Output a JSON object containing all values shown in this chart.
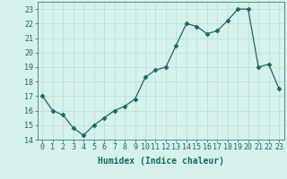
{
  "xlabel": "Humidex (Indice chaleur)",
  "x": [
    0,
    1,
    2,
    3,
    4,
    5,
    6,
    7,
    8,
    9,
    10,
    11,
    12,
    13,
    14,
    15,
    16,
    17,
    18,
    19,
    20,
    21,
    22,
    23
  ],
  "y": [
    17.0,
    16.0,
    15.7,
    14.8,
    14.3,
    15.0,
    15.5,
    16.0,
    16.3,
    16.8,
    18.3,
    18.8,
    19.0,
    20.5,
    22.0,
    21.8,
    21.3,
    21.5,
    22.2,
    23.0,
    23.0,
    19.0,
    19.2,
    17.5
  ],
  "line_color": "#1a6b5a",
  "marker": "D",
  "marker_size": 2.5,
  "bg_color": "#d6f0ee",
  "grid_color": "#b8dbd8",
  "tick_color": "#1a6b5a",
  "label_color": "#1a6b5a",
  "ylim": [
    14,
    23.5
  ],
  "yticks": [
    14,
    15,
    16,
    17,
    18,
    19,
    20,
    21,
    22,
    23
  ],
  "xlim": [
    -0.5,
    23.5
  ],
  "axis_fontsize": 6.5,
  "tick_fontsize": 6,
  "xlabel_fontsize": 7
}
